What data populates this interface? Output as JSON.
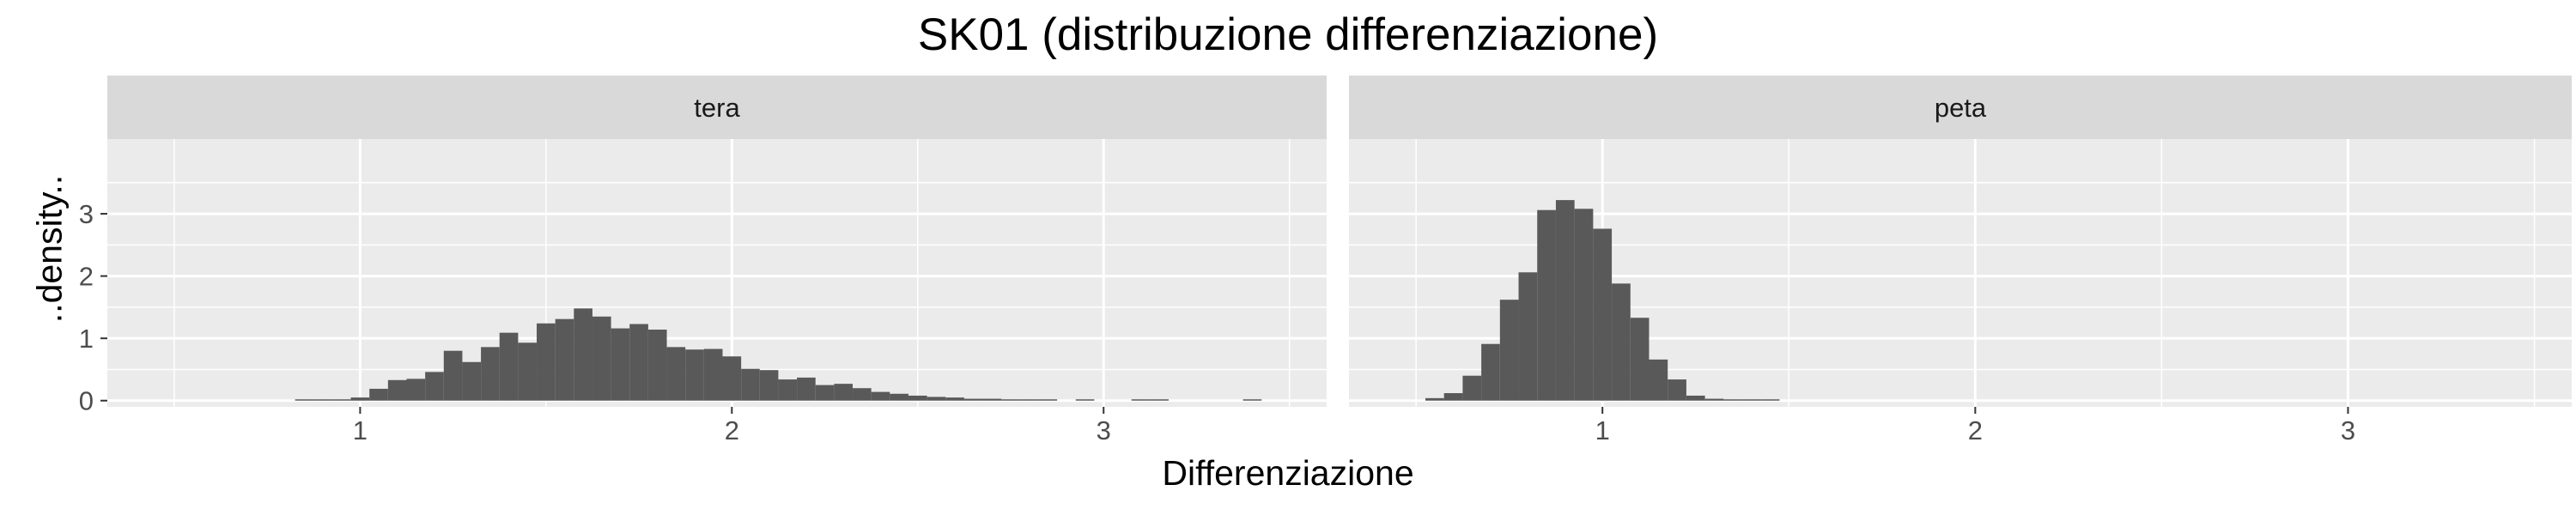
{
  "chart_data": {
    "type": "bar",
    "title": "SK01 (distribuzione differenziazione)",
    "xlabel": "Differenziazione",
    "ylabel": "..density..",
    "xlim": [
      0.32,
      3.6
    ],
    "ylim": [
      -0.1,
      4.2
    ],
    "x_ticks": [
      "1",
      "2",
      "3"
    ],
    "y_ticks": [
      "0",
      "1",
      "2",
      "3"
    ],
    "bin_width": 0.05,
    "grid": true,
    "colors": {
      "bar": "#595959",
      "panel": "#ebebeb",
      "strip": "#d9d9d9",
      "grid": "#ffffff"
    },
    "facets": [
      {
        "label": "tera",
        "bins": [
          {
            "x": 0.85,
            "y": 0.01
          },
          {
            "x": 0.9,
            "y": 0.01
          },
          {
            "x": 0.95,
            "y": 0.02
          },
          {
            "x": 1.0,
            "y": 0.05
          },
          {
            "x": 1.05,
            "y": 0.19
          },
          {
            "x": 1.1,
            "y": 0.33
          },
          {
            "x": 1.15,
            "y": 0.35
          },
          {
            "x": 1.2,
            "y": 0.46
          },
          {
            "x": 1.25,
            "y": 0.8
          },
          {
            "x": 1.3,
            "y": 0.62
          },
          {
            "x": 1.35,
            "y": 0.86
          },
          {
            "x": 1.4,
            "y": 1.09
          },
          {
            "x": 1.45,
            "y": 0.93
          },
          {
            "x": 1.5,
            "y": 1.24
          },
          {
            "x": 1.55,
            "y": 1.31
          },
          {
            "x": 1.6,
            "y": 1.48
          },
          {
            "x": 1.65,
            "y": 1.35
          },
          {
            "x": 1.7,
            "y": 1.16
          },
          {
            "x": 1.75,
            "y": 1.23
          },
          {
            "x": 1.8,
            "y": 1.14
          },
          {
            "x": 1.85,
            "y": 0.86
          },
          {
            "x": 1.9,
            "y": 0.82
          },
          {
            "x": 1.95,
            "y": 0.83
          },
          {
            "x": 2.0,
            "y": 0.71
          },
          {
            "x": 2.05,
            "y": 0.51
          },
          {
            "x": 2.1,
            "y": 0.49
          },
          {
            "x": 2.15,
            "y": 0.34
          },
          {
            "x": 2.2,
            "y": 0.37
          },
          {
            "x": 2.25,
            "y": 0.25
          },
          {
            "x": 2.3,
            "y": 0.27
          },
          {
            "x": 2.35,
            "y": 0.2
          },
          {
            "x": 2.4,
            "y": 0.14
          },
          {
            "x": 2.45,
            "y": 0.11
          },
          {
            "x": 2.5,
            "y": 0.08
          },
          {
            "x": 2.55,
            "y": 0.06
          },
          {
            "x": 2.6,
            "y": 0.05
          },
          {
            "x": 2.65,
            "y": 0.03
          },
          {
            "x": 2.7,
            "y": 0.03
          },
          {
            "x": 2.75,
            "y": 0.02
          },
          {
            "x": 2.8,
            "y": 0.02
          },
          {
            "x": 2.85,
            "y": 0.01
          },
          {
            "x": 2.95,
            "y": 0.01
          },
          {
            "x": 3.1,
            "y": 0.01
          },
          {
            "x": 3.15,
            "y": 0.01
          },
          {
            "x": 3.4,
            "y": 0.01
          }
        ]
      },
      {
        "label": "peta",
        "bins": [
          {
            "x": 0.55,
            "y": 0.04
          },
          {
            "x": 0.6,
            "y": 0.12
          },
          {
            "x": 0.65,
            "y": 0.4
          },
          {
            "x": 0.7,
            "y": 0.91
          },
          {
            "x": 0.75,
            "y": 1.62
          },
          {
            "x": 0.8,
            "y": 2.06
          },
          {
            "x": 0.85,
            "y": 3.06
          },
          {
            "x": 0.9,
            "y": 3.22
          },
          {
            "x": 0.95,
            "y": 3.08
          },
          {
            "x": 1.0,
            "y": 2.76
          },
          {
            "x": 1.05,
            "y": 1.88
          },
          {
            "x": 1.1,
            "y": 1.33
          },
          {
            "x": 1.15,
            "y": 0.66
          },
          {
            "x": 1.2,
            "y": 0.34
          },
          {
            "x": 1.25,
            "y": 0.08
          },
          {
            "x": 1.3,
            "y": 0.03
          },
          {
            "x": 1.35,
            "y": 0.02
          },
          {
            "x": 1.4,
            "y": 0.01
          },
          {
            "x": 1.45,
            "y": 0.01
          }
        ]
      }
    ]
  }
}
